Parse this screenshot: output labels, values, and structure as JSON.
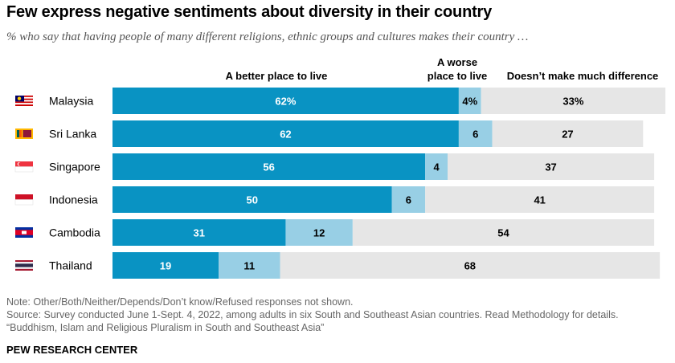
{
  "title": "Few express negative sentiments about diversity in their country",
  "subtitle": "% who say that having people of many different religions, ethnic groups and cultures makes their country …",
  "colors": {
    "better": "#0993c3",
    "worse": "#98cfe5",
    "no_difference": "#e6e6e6"
  },
  "chart_data": {
    "type": "bar",
    "orientation": "horizontal",
    "stacked": true,
    "categories": [
      "Malaysia",
      "Sri Lanka",
      "Singapore",
      "Indonesia",
      "Cambodia",
      "Thailand"
    ],
    "flags": [
      "malaysia-flag-icon",
      "sri-lanka-flag-icon",
      "singapore-flag-icon",
      "indonesia-flag-icon",
      "cambodia-flag-icon",
      "thailand-flag-icon"
    ],
    "series": [
      {
        "name": "A better place to live",
        "values": [
          62,
          62,
          56,
          50,
          31,
          19
        ],
        "labels": [
          "62%",
          "62",
          "56",
          "50",
          "31",
          "19"
        ]
      },
      {
        "name": "A worse place to live",
        "values": [
          4,
          6,
          4,
          6,
          12,
          11
        ],
        "labels": [
          "4%",
          "6",
          "4",
          "6",
          "12",
          "11"
        ]
      },
      {
        "name": "Doesn’t make much difference",
        "values": [
          33,
          27,
          37,
          41,
          54,
          68
        ],
        "labels": [
          "33%",
          "27",
          "37",
          "41",
          "54",
          "68"
        ]
      }
    ],
    "column_headers": [
      "A better place to live",
      "A worse place to live",
      "Doesn’t make much difference"
    ],
    "xlim": [
      0,
      100
    ],
    "grid": false,
    "legend": "column headers above bars"
  },
  "notes": [
    "Note: Other/Both/Neither/Depends/Don’t know/Refused responses not shown.",
    "Source: Survey conducted June 1-Sept. 4, 2022, among adults in six South and Southeast Asian countries. Read Methodology for details.",
    "“Buddhism, Islam and Religious Pluralism in South and Southeast Asia”"
  ],
  "brand": "PEW RESEARCH CENTER"
}
